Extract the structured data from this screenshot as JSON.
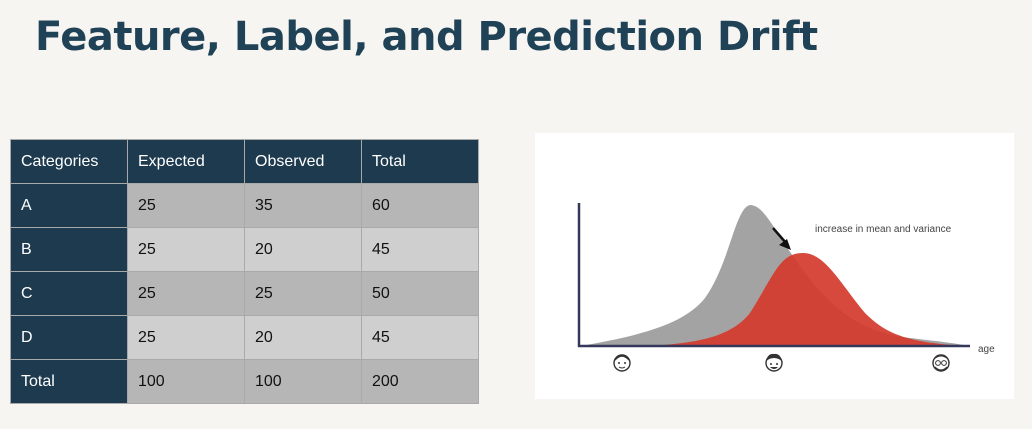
{
  "title": "Feature, Label, and Prediction Drift",
  "table": {
    "headers": [
      "Categories",
      "Expected",
      "Observed",
      "Total"
    ],
    "rows": [
      [
        "A",
        "25",
        "35",
        "60"
      ],
      [
        "B",
        "25",
        "20",
        "45"
      ],
      [
        "C",
        "25",
        "25",
        "50"
      ],
      [
        "D",
        "25",
        "20",
        "45"
      ],
      [
        "Total",
        "100",
        "100",
        "200"
      ]
    ]
  },
  "figure": {
    "annotation": "increase in mean and variance",
    "axis_label": "age",
    "colors": {
      "baseline": "#a3a3a3",
      "shifted": "#d43a2c",
      "axis": "#35385a"
    },
    "icons": [
      "child-face-icon",
      "adult-face-icon",
      "elderly-face-icon"
    ]
  }
}
